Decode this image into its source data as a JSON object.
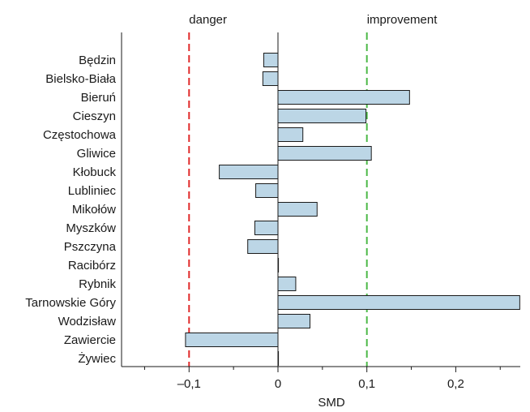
{
  "chart_data": {
    "type": "bar",
    "orientation": "horizontal",
    "categories": [
      "Będzin",
      "Bielsko-Biała",
      "Bieruń",
      "Cieszyn",
      "Częstochowa",
      "Gliwice",
      "Kłobuck",
      "Lubliniec",
      "Mikołów",
      "Myszków",
      "Pszczyna",
      "Racibórz",
      "Rybnik",
      "Tarnowskie Góry",
      "Wodzisław",
      "Zawiercie",
      "Żywiec"
    ],
    "values": [
      -0.016,
      -0.017,
      0.148,
      0.099,
      0.028,
      0.105,
      -0.066,
      -0.025,
      0.044,
      -0.026,
      -0.034,
      0.0,
      0.02,
      0.272,
      0.036,
      -0.104,
      0.0
    ],
    "xlabel": "SMD",
    "ylabel": "",
    "xlim": [
      -0.15,
      0.28
    ],
    "xticks": [
      -0.1,
      0,
      0.1,
      0.2
    ],
    "xtick_labels": [
      "–0,1",
      "0",
      "0,1",
      "0,2"
    ],
    "bar_color": "#bcd6e6",
    "reference_lines": [
      {
        "x": -0.1,
        "label": "danger",
        "color": "#e02a2a",
        "style": "dashed"
      },
      {
        "x": 0.1,
        "label": "improvement",
        "color": "#4cb848",
        "style": "dashed"
      }
    ],
    "grid": false
  }
}
